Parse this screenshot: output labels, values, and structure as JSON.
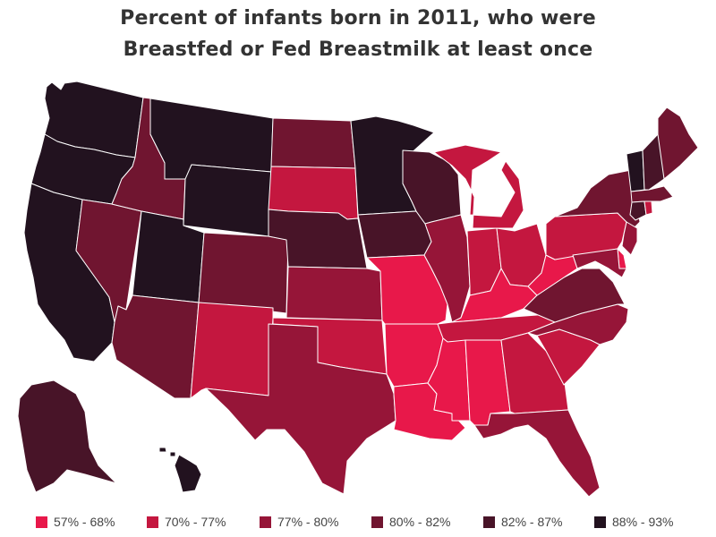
{
  "title": {
    "line1": "Percent of infants born in 2011, who were",
    "line2": "Breastfed or Fed Breastmilk at least once"
  },
  "legend": [
    {
      "label": "57% - 68%",
      "color": "#e8184a"
    },
    {
      "label": "70% - 77%",
      "color": "#c4173f"
    },
    {
      "label": "77% - 80%",
      "color": "#961538"
    },
    {
      "label": "80% - 82%",
      "color": "#701530"
    },
    {
      "label": "82% - 87%",
      "color": "#481428"
    },
    {
      "label": "88% - 93%",
      "color": "#22121f"
    }
  ],
  "states": {
    "WA": 5,
    "OR": 5,
    "CA": 5,
    "ID": 3,
    "NV": 3,
    "MT": 5,
    "WY": 5,
    "UT": 5,
    "AZ": 3,
    "CO": 3,
    "NM": 1,
    "ND": 3,
    "SD": 1,
    "NE": 4,
    "KS": 2,
    "OK": 1,
    "TX": 2,
    "MN": 5,
    "IA": 4,
    "MO": 0,
    "AR": 0,
    "LA": 0,
    "WI": 4,
    "IL": 2,
    "MI": 1,
    "IN": 1,
    "OH": 1,
    "KY": 0,
    "TN": 1,
    "MS": 0,
    "AL": 0,
    "GA": 1,
    "FL": 2,
    "SC": 1,
    "NC": 2,
    "VA": 3,
    "WV": 0,
    "PA": 1,
    "NY": 3,
    "ME": 3,
    "VT": 5,
    "NH": 4,
    "MA": 3,
    "CT": 4,
    "RI": 1,
    "NJ": 2,
    "DE": 0,
    "MD": 2,
    "AK": 4,
    "HI": 5
  }
}
